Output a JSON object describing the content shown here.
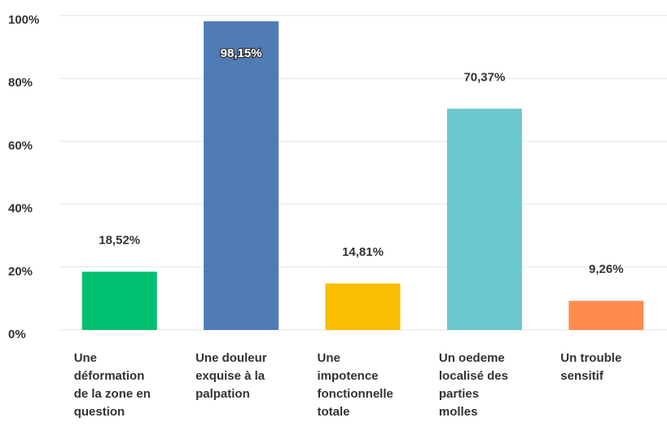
{
  "chart_data": {
    "type": "bar",
    "categories": [
      "Une déformation de la zone en question",
      "Une douleur exquise à la palpation",
      "Une impotence fonctionnelle totale",
      "Un oedeme localisé des parties molles",
      "Un trouble sensitif"
    ],
    "values": [
      18.52,
      98.15,
      14.81,
      70.37,
      9.26
    ],
    "value_labels": [
      "18,52%",
      "98,15%",
      "14,81%",
      "70,37%",
      "9,26%"
    ],
    "colors": [
      "#00bf6f",
      "#507cb6",
      "#f9be00",
      "#6bc8cd",
      "#ff8b4f"
    ],
    "ylim": [
      0,
      100
    ],
    "yticks": [
      {
        "value": 0,
        "label": "0%"
      },
      {
        "value": 20,
        "label": "20%"
      },
      {
        "value": 40,
        "label": "40%"
      },
      {
        "value": 60,
        "label": "60%"
      },
      {
        "value": 80,
        "label": "80%"
      },
      {
        "value": 100,
        "label": "100%"
      }
    ],
    "grid": true
  }
}
